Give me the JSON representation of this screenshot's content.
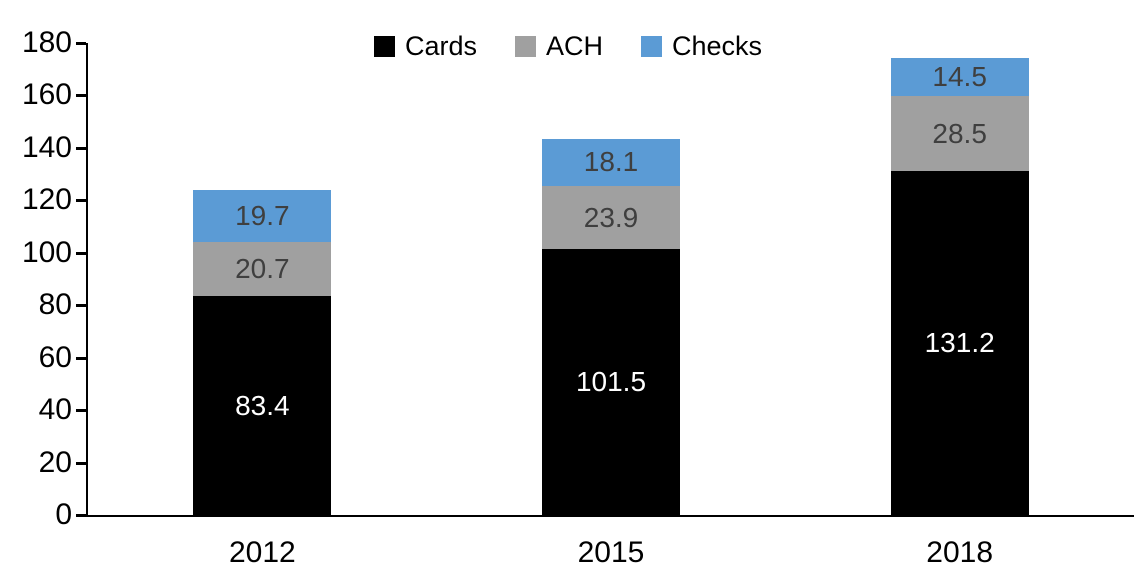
{
  "chart_data": {
    "type": "bar",
    "stacked": true,
    "title": "",
    "xlabel": "",
    "ylabel": "",
    "categories": [
      "2012",
      "2015",
      "2018"
    ],
    "series": [
      {
        "name": "Cards",
        "color": "#000000",
        "label_color": "#ffffff",
        "values": [
          83.4,
          101.5,
          131.2
        ]
      },
      {
        "name": "ACH",
        "color": "#a0a0a0",
        "label_color": "#3f3f3f",
        "values": [
          20.7,
          23.9,
          28.5
        ]
      },
      {
        "name": "Checks",
        "color": "#5b9bd5",
        "label_color": "#3f3f3f",
        "values": [
          19.7,
          18.1,
          14.5
        ]
      }
    ],
    "y_axis": {
      "min": 0,
      "max": 180,
      "step": 20,
      "tick_labels": [
        "0",
        "20",
        "40",
        "60",
        "80",
        "100",
        "120",
        "140",
        "160",
        "180"
      ]
    },
    "legend": {
      "position": "top",
      "entries": [
        "Cards",
        "ACH",
        "Checks"
      ]
    },
    "grid": false,
    "axis_color": "#000000"
  }
}
